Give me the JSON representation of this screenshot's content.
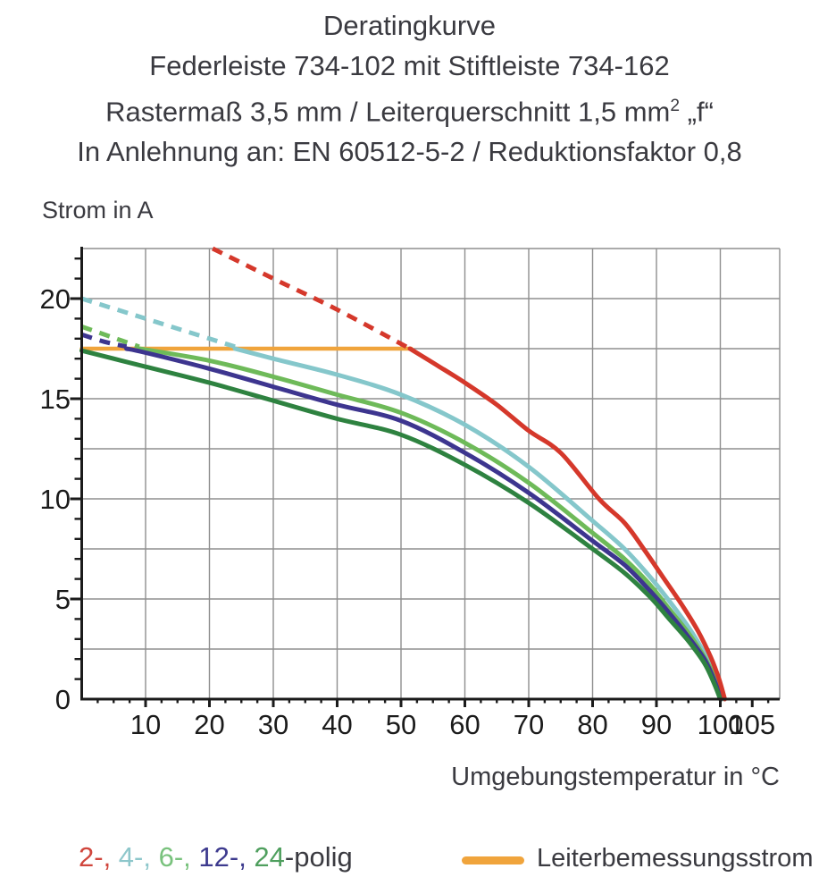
{
  "title": {
    "line1": "Deratingkurve",
    "line2": "Federleiste 734-102 mit Stiftleiste 734-162",
    "line3_prefix": "Rastermaß 3,5 mm / Leiterquerschnitt 1,5 mm",
    "line3_sup": "2",
    "line3_suffix": " „f“",
    "line4": "In Anlehnung an: EN 60512-5-2 / Reduktionsfaktor 0,8"
  },
  "axes": {
    "y_axis_label": "Strom in A",
    "x_axis_label": "Umgebungstemperatur in °C"
  },
  "legend": {
    "poles": [
      {
        "label": "2-,",
        "color": "#d0453c"
      },
      {
        "label": " 4-,",
        "color": "#8ec7cb"
      },
      {
        "label": " 6-,",
        "color": "#79c27d"
      },
      {
        "label": " 12-,",
        "color": "#3d3a8e"
      },
      {
        "label": " 24",
        "color": "#4f9f5e"
      },
      {
        "label": "-polig",
        "color": "#3a3a40"
      }
    ],
    "conductor_label": "Leiterbemessungsstrom",
    "conductor_color": "#f0a43c"
  },
  "chart_data": {
    "type": "line",
    "title": "Deratingkurve",
    "xlabel": "Umgebungstemperatur in °C",
    "ylabel": "Strom in A",
    "xlim": [
      0,
      109.3
    ],
    "ylim": [
      0,
      22.5
    ],
    "x_ticks_labeled": [
      10,
      20,
      30,
      40,
      50,
      60,
      70,
      80,
      90,
      100,
      105
    ],
    "y_ticks_labeled": [
      0,
      5,
      10,
      15,
      20
    ],
    "x_grid_step": 10,
    "y_grid_step": 2.5,
    "x_minor_tick_step": 2.5,
    "y_minor_tick_step": 1,
    "grid_color": "#8f8f8f",
    "axis_color": "#1b1b1b",
    "tick_label_color": "#1b1b1b",
    "conductor_line": {
      "name": "Leiterbemessungsstrom",
      "color": "#f0a43c",
      "value_a": 17.5,
      "points": [
        [
          0,
          17.5
        ],
        [
          51.6,
          17.5
        ]
      ]
    },
    "series": [
      {
        "name": "4-polig",
        "color": "#85c7cb",
        "dashed": [
          [
            0,
            20.0
          ],
          [
            8,
            19.2
          ],
          [
            16,
            18.4
          ],
          [
            24,
            17.6
          ]
        ],
        "solid": [
          [
            24,
            17.5
          ],
          [
            30,
            17.0
          ],
          [
            40,
            16.2
          ],
          [
            50,
            15.2
          ],
          [
            60,
            13.7
          ],
          [
            70,
            11.6
          ],
          [
            80,
            8.9
          ],
          [
            85,
            7.5
          ],
          [
            89,
            6.1
          ],
          [
            92,
            4.9
          ],
          [
            95,
            3.6
          ],
          [
            97.5,
            2.3
          ],
          [
            99.3,
            1.1
          ],
          [
            100.3,
            0
          ]
        ]
      },
      {
        "name": "6-polig",
        "color": "#6eba59",
        "dashed": [
          [
            0,
            18.6
          ],
          [
            4.5,
            18.1
          ],
          [
            9,
            17.6
          ]
        ],
        "solid": [
          [
            9,
            17.5
          ],
          [
            20,
            16.9
          ],
          [
            30,
            16.1
          ],
          [
            40,
            15.2
          ],
          [
            50,
            14.3
          ],
          [
            60,
            12.8
          ],
          [
            70,
            10.8
          ],
          [
            80,
            8.3
          ],
          [
            85,
            7.0
          ],
          [
            89,
            5.7
          ],
          [
            92,
            4.5
          ],
          [
            95,
            3.3
          ],
          [
            97.5,
            2.1
          ],
          [
            99.2,
            1.0
          ],
          [
            100.2,
            0
          ]
        ]
      },
      {
        "name": "12-polig",
        "color": "#3d358f",
        "dashed": [
          [
            0,
            18.2
          ],
          [
            3.5,
            17.85
          ],
          [
            7,
            17.6
          ]
        ],
        "solid": [
          [
            7,
            17.5
          ],
          [
            10,
            17.3
          ],
          [
            20,
            16.5
          ],
          [
            30,
            15.6
          ],
          [
            40,
            14.7
          ],
          [
            50,
            13.9
          ],
          [
            60,
            12.3
          ],
          [
            70,
            10.3
          ],
          [
            80,
            7.9
          ],
          [
            85,
            6.7
          ],
          [
            89,
            5.4
          ],
          [
            92,
            4.3
          ],
          [
            95,
            3.1
          ],
          [
            97.5,
            2.0
          ],
          [
            99.1,
            0.9
          ],
          [
            100.1,
            0
          ]
        ]
      },
      {
        "name": "24-polig",
        "color": "#2e8240",
        "dashed": [],
        "solid": [
          [
            0,
            17.4
          ],
          [
            10,
            16.6
          ],
          [
            20,
            15.8
          ],
          [
            30,
            14.9
          ],
          [
            40,
            14.0
          ],
          [
            50,
            13.2
          ],
          [
            60,
            11.7
          ],
          [
            70,
            9.8
          ],
          [
            80,
            7.5
          ],
          [
            85,
            6.3
          ],
          [
            89,
            5.1
          ],
          [
            92,
            4.0
          ],
          [
            95,
            2.9
          ],
          [
            97.5,
            1.8
          ],
          [
            99,
            0.8
          ],
          [
            100,
            0
          ]
        ]
      },
      {
        "name": "2-polig",
        "color": "#d5382b",
        "dashed": [
          [
            20.5,
            22.5
          ],
          [
            30,
            21.0
          ],
          [
            40,
            19.45
          ],
          [
            51.4,
            17.5
          ]
        ],
        "solid": [
          [
            51.4,
            17.5
          ],
          [
            56,
            16.6
          ],
          [
            60,
            15.8
          ],
          [
            65,
            14.7
          ],
          [
            70,
            13.4
          ],
          [
            75,
            12.3
          ],
          [
            81,
            10.0
          ],
          [
            85,
            8.8
          ],
          [
            88,
            7.5
          ],
          [
            91,
            6.1
          ],
          [
            94,
            4.7
          ],
          [
            96.5,
            3.4
          ],
          [
            98.5,
            2.1
          ],
          [
            99.8,
            1.0
          ],
          [
            100.7,
            0
          ]
        ]
      }
    ]
  }
}
